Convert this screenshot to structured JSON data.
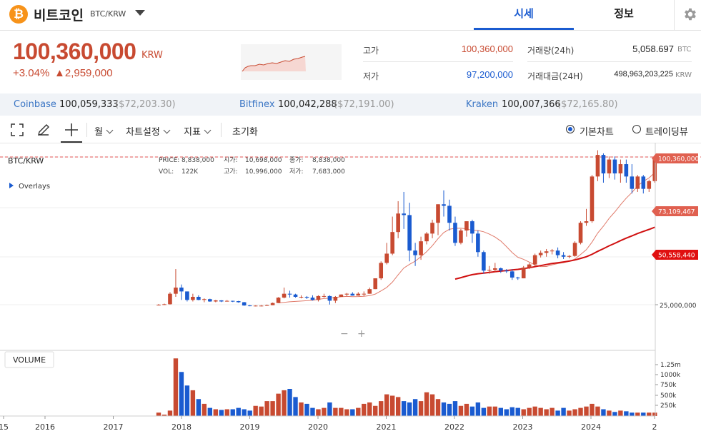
{
  "header": {
    "coin_symbol": "₿",
    "coin_name": "비트코인",
    "coin_pair": "BTC/KRW",
    "tabs": [
      {
        "label": "시세"
      },
      {
        "label": "정보"
      }
    ]
  },
  "price": {
    "current": "100,360,000",
    "unit": "KRW",
    "change_pct": "+3.04%",
    "change_diff": "▲2,959,000"
  },
  "stats": {
    "high_label": "고가",
    "high_value": "100,360,000",
    "low_label": "저가",
    "low_value": "97,200,000",
    "volume_label": "거래량(24h)",
    "volume_value": "5,058.697",
    "volume_unit": "BTC",
    "amount_label": "거래대금(24H)",
    "amount_value": "498,963,203,225",
    "amount_unit": "KRW"
  },
  "exchanges": [
    {
      "name": "Coinbase",
      "price": "100,059,333",
      "usd": "($72,203.30)"
    },
    {
      "name": "Bitfinex",
      "price": "100,042,288",
      "usd": "($72,191.00)"
    },
    {
      "name": "Kraken",
      "price": "100,007,366",
      "usd": "($72,165.80)"
    }
  ],
  "toolbar": {
    "interval_label": "월",
    "chart_settings_label": "차트설정",
    "indicator_label": "지표",
    "reset_label": "초기화",
    "basic_chart_label": "기본차트",
    "tradingview_label": "트레이딩뷰"
  },
  "chart_info": {
    "symbol": "BTC/KRW",
    "overlays": "Overlays",
    "price_label": "PRICE:",
    "price_value": "8,838,000",
    "open_label": "시가:",
    "open_value": "10,698,000",
    "close_label": "종가:",
    "close_value": "8,838,000",
    "vol_label": "VOL:",
    "vol_value": "122K",
    "high_label": "고가:",
    "high_value": "10,996,000",
    "low_label": "저가:",
    "low_value": "7,683,000",
    "volume_panel_label": "VOLUME"
  },
  "colors": {
    "up": "#c84a31",
    "down": "#1a5bd0",
    "accent": "#1a5bd0"
  },
  "chart_data": {
    "type": "candlestick",
    "x_ticks": [
      "15",
      "2016",
      "2017",
      "2018",
      "2019",
      "2020",
      "2021",
      "2022",
      "2023",
      "2024",
      "2"
    ],
    "y_price_ticks": [
      "25,000,000"
    ],
    "y_volume_ticks": [
      "1.25m",
      "1000k",
      "750k",
      "500k",
      "250k"
    ],
    "price_tags": [
      {
        "label": "100,360,000",
        "value": 100360000
      },
      {
        "label": "73,109,467",
        "value": 73109467
      },
      {
        "label": "50,558,440",
        "value": 50558440
      }
    ],
    "ma_short_start_month": "2019-06",
    "ma_long_start_month": "2022-01",
    "months_start": "2017-09",
    "candles": [
      [
        4.8,
        4.9,
        4.4,
        5.3
      ],
      [
        4.9,
        5.2,
        4.7,
        5.6
      ],
      [
        5.2,
        12.0,
        5.0,
        13.0
      ],
      [
        12.0,
        16.0,
        10.0,
        28.0
      ],
      [
        16.0,
        13.5,
        8.0,
        18.0
      ],
      [
        13.5,
        8.0,
        7.0,
        13.5
      ],
      [
        8.0,
        10.0,
        7.0,
        12.0
      ],
      [
        10.0,
        8.0,
        7.8,
        11.0
      ],
      [
        8.0,
        8.5,
        6.5,
        9.0
      ],
      [
        8.5,
        7.0,
        6.8,
        8.8
      ],
      [
        7.0,
        7.7,
        6.5,
        8.0
      ],
      [
        7.7,
        7.0,
        6.6,
        7.8
      ],
      [
        7.0,
        7.4,
        6.9,
        7.9
      ],
      [
        7.4,
        7.2,
        6.6,
        7.5
      ],
      [
        7.2,
        6.5,
        6.2,
        7.4
      ],
      [
        6.5,
        4.4,
        4.2,
        6.7
      ],
      [
        4.4,
        4.0,
        3.9,
        4.7
      ],
      [
        4.0,
        4.3,
        3.8,
        4.5
      ],
      [
        4.3,
        4.3,
        3.8,
        4.6
      ],
      [
        4.3,
        4.6,
        4.3,
        5.0
      ],
      [
        4.6,
        6.0,
        4.6,
        6.3
      ],
      [
        6.0,
        9.5,
        6.0,
        9.8
      ],
      [
        9.5,
        12.0,
        9.0,
        16.0
      ],
      [
        12.0,
        11.5,
        9.5,
        14.0
      ],
      [
        11.5,
        10.0,
        9.5,
        12.0
      ],
      [
        10.0,
        10.0,
        9.0,
        11.0
      ],
      [
        10.0,
        9.5,
        8.6,
        10.5
      ],
      [
        9.5,
        8.0,
        7.6,
        11.0
      ],
      [
        8.0,
        10.5,
        7.0,
        11.0
      ],
      [
        10.5,
        10.5,
        9.5,
        12.0
      ],
      [
        10.5,
        7.5,
        5.0,
        11.0
      ],
      [
        7.5,
        10.0,
        6.0,
        10.5
      ],
      [
        10.0,
        11.5,
        10.0,
        11.6
      ],
      [
        11.5,
        12.0,
        10.5,
        12.5
      ],
      [
        12.0,
        10.8,
        10.8,
        13.0
      ],
      [
        10.8,
        12.0,
        10.8,
        13.0
      ],
      [
        12.0,
        12.0,
        10.5,
        13.5
      ],
      [
        12.0,
        15.0,
        12.0,
        16.0
      ],
      [
        15.0,
        22.0,
        15.0,
        22.0
      ],
      [
        22.0,
        32.0,
        21.0,
        33.0
      ],
      [
        32.0,
        38.0,
        31.0,
        45.0
      ],
      [
        38.0,
        52.0,
        37.0,
        62.0
      ],
      [
        52.0,
        64.0,
        48.0,
        72.0
      ],
      [
        64.0,
        63.0,
        54.0,
        78.0
      ],
      [
        63.0,
        40.0,
        33.0,
        71.0
      ],
      [
        40.0,
        37.0,
        30.0,
        45.0
      ],
      [
        37.0,
        46.0,
        34.0,
        49.0
      ],
      [
        46.0,
        51.0,
        44.0,
        52.0
      ],
      [
        51.0,
        58.0,
        48.0,
        60.0
      ],
      [
        58.0,
        70.0,
        50.0,
        70.0
      ],
      [
        70.0,
        69.0,
        62.0,
        79.0
      ],
      [
        69.0,
        58.0,
        53.0,
        73.0
      ],
      [
        58.0,
        45.0,
        43.0,
        62.0
      ],
      [
        45.0,
        53.0,
        44.0,
        54.0
      ],
      [
        53.0,
        59.0,
        49.0,
        59.0
      ],
      [
        59.0,
        51.0,
        45.0,
        60.0
      ],
      [
        51.0,
        39.0,
        36.0,
        53.0
      ],
      [
        39.0,
        27.0,
        25.0,
        40.0
      ],
      [
        27.0,
        27.5,
        25.0,
        30.0
      ],
      [
        27.5,
        28.5,
        26.0,
        32.0
      ],
      [
        28.5,
        27.0,
        25.5,
        29.0
      ],
      [
        27.0,
        26.5,
        25.5,
        28.0
      ],
      [
        26.5,
        22.5,
        21.0,
        28.0
      ],
      [
        22.5,
        22.0,
        21.0,
        23.0
      ],
      [
        22.0,
        29.0,
        22.0,
        30.0
      ],
      [
        29.0,
        31.0,
        28.0,
        32.0
      ],
      [
        31.0,
        37.0,
        30.0,
        38.0
      ],
      [
        37.0,
        38.5,
        35.5,
        40.0
      ],
      [
        38.5,
        39.5,
        36.0,
        41.0
      ],
      [
        39.5,
        40.0,
        37.5,
        41.0
      ],
      [
        40.0,
        37.0,
        35.0,
        42.0
      ],
      [
        37.0,
        36.0,
        34.5,
        39.0
      ],
      [
        36.0,
        36.5,
        35.0,
        37.0
      ],
      [
        36.5,
        45.0,
        36.0,
        46.0
      ],
      [
        45.0,
        58.0,
        44.0,
        59.0
      ],
      [
        58.0,
        59.0,
        56.0,
        67.0
      ],
      [
        59.0,
        88.0,
        58.0,
        89.0
      ],
      [
        88.0,
        102.0,
        85.0,
        105.0
      ],
      [
        102.0,
        90.0,
        84.0,
        103.0
      ],
      [
        90.0,
        99.0,
        87.0,
        101.0
      ],
      [
        99.0,
        90.0,
        86.0,
        101.0
      ],
      [
        90.0,
        96.0,
        84.0,
        99.0
      ],
      [
        96.0,
        88.0,
        84.0,
        99.0
      ],
      [
        88.0,
        80.0,
        77.0,
        96.0
      ],
      [
        80.0,
        88.0,
        78.0,
        89.0
      ],
      [
        88.0,
        80.0,
        77.0,
        89.0
      ],
      [
        80.0,
        85.0,
        78.0,
        86.0
      ],
      [
        85.0,
        100.36,
        84.0,
        100.36
      ]
    ]
  }
}
